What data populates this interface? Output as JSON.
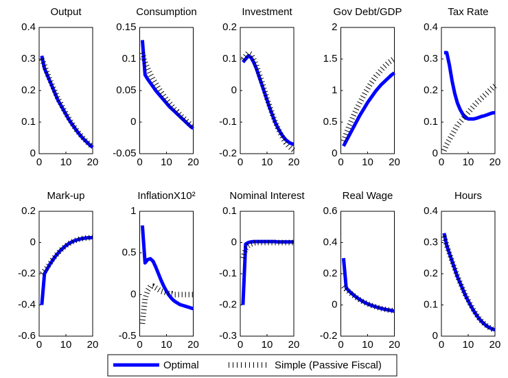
{
  "chart_data": [
    {
      "type": "line",
      "title": "Output",
      "x": [
        1,
        2,
        3,
        4,
        5,
        6,
        7,
        8,
        9,
        10,
        11,
        12,
        13,
        14,
        15,
        16,
        17,
        18,
        19,
        20
      ],
      "xlim": [
        0,
        20
      ],
      "xticks": [
        0,
        10,
        20
      ],
      "ylim": [
        0,
        0.4
      ],
      "yticks": [
        0,
        0.1,
        0.2,
        0.3,
        0.4
      ],
      "series": [
        {
          "name": "Optimal",
          "color": "#0000ff",
          "values": [
            0.31,
            0.27,
            0.25,
            0.23,
            0.21,
            0.19,
            0.17,
            0.155,
            0.14,
            0.125,
            0.11,
            0.097,
            0.085,
            0.073,
            0.062,
            0.052,
            0.043,
            0.035,
            0.027,
            0.02
          ]
        },
        {
          "name": "Simple (Passive Fiscal)",
          "color": "#000000",
          "values": [
            0.3,
            0.28,
            0.255,
            0.235,
            0.215,
            0.195,
            0.175,
            0.16,
            0.143,
            0.128,
            0.113,
            0.1,
            0.087,
            0.075,
            0.064,
            0.054,
            0.045,
            0.036,
            0.028,
            0.021
          ]
        }
      ]
    },
    {
      "type": "line",
      "title": "Consumption",
      "x": [
        1,
        2,
        3,
        4,
        5,
        6,
        7,
        8,
        9,
        10,
        11,
        12,
        13,
        14,
        15,
        16,
        17,
        18,
        19,
        20
      ],
      "xlim": [
        0,
        20
      ],
      "xticks": [
        0,
        10,
        20
      ],
      "ylim": [
        -0.05,
        0.15
      ],
      "yticks": [
        -0.05,
        0,
        0.05,
        0.1,
        0.15
      ],
      "series": [
        {
          "color": "#0000ff",
          "values": [
            0.13,
            0.075,
            0.068,
            0.062,
            0.056,
            0.05,
            0.045,
            0.04,
            0.035,
            0.03,
            0.025,
            0.021,
            0.017,
            0.013,
            0.009,
            0.005,
            0.001,
            -0.003,
            -0.007,
            -0.01
          ]
        },
        {
          "color": "#000000",
          "values": [
            0.11,
            0.095,
            0.085,
            0.076,
            0.068,
            0.061,
            0.054,
            0.048,
            0.042,
            0.036,
            0.031,
            0.026,
            0.021,
            0.017,
            0.012,
            0.008,
            0.004,
            0,
            -0.004,
            -0.008
          ]
        }
      ]
    },
    {
      "type": "line",
      "title": "Investment",
      "x": [
        1,
        2,
        3,
        4,
        5,
        6,
        7,
        8,
        9,
        10,
        11,
        12,
        13,
        14,
        15,
        16,
        17,
        18,
        19,
        20
      ],
      "xlim": [
        0,
        20
      ],
      "xticks": [
        0,
        10,
        20
      ],
      "ylim": [
        -0.2,
        0.2
      ],
      "yticks": [
        -0.2,
        -0.1,
        0,
        0.1,
        0.2
      ],
      "series": [
        {
          "color": "#0000ff",
          "values": [
            0.09,
            0.1,
            0.11,
            0.105,
            0.09,
            0.07,
            0.045,
            0.02,
            -0.005,
            -0.03,
            -0.055,
            -0.078,
            -0.1,
            -0.118,
            -0.133,
            -0.146,
            -0.156,
            -0.163,
            -0.168,
            -0.17
          ]
        },
        {
          "color": "#000000",
          "values": [
            0.1,
            0.11,
            0.12,
            0.115,
            0.1,
            0.08,
            0.055,
            0.03,
            0.003,
            -0.025,
            -0.05,
            -0.075,
            -0.098,
            -0.118,
            -0.136,
            -0.152,
            -0.165,
            -0.175,
            -0.183,
            -0.19
          ]
        }
      ]
    },
    {
      "type": "line",
      "title": "Gov Debt/GDP",
      "x": [
        1,
        2,
        3,
        4,
        5,
        6,
        7,
        8,
        9,
        10,
        11,
        12,
        13,
        14,
        15,
        16,
        17,
        18,
        19,
        20
      ],
      "xlim": [
        0,
        20
      ],
      "xticks": [
        0,
        10,
        20
      ],
      "ylim": [
        0,
        2
      ],
      "yticks": [
        0,
        0.5,
        1,
        1.5,
        2
      ],
      "series": [
        {
          "color": "#0000ff",
          "values": [
            0.12,
            0.2,
            0.28,
            0.36,
            0.44,
            0.52,
            0.6,
            0.67,
            0.74,
            0.81,
            0.87,
            0.93,
            0.99,
            1.04,
            1.09,
            1.13,
            1.17,
            1.21,
            1.25,
            1.28
          ]
        },
        {
          "color": "#000000",
          "values": [
            0.2,
            0.32,
            0.43,
            0.53,
            0.63,
            0.72,
            0.8,
            0.88,
            0.96,
            1.03,
            1.1,
            1.16,
            1.22,
            1.27,
            1.32,
            1.37,
            1.41,
            1.45,
            1.48,
            1.51
          ]
        }
      ]
    },
    {
      "type": "line",
      "title": "Tax Rate",
      "x": [
        1,
        2,
        3,
        4,
        5,
        6,
        7,
        8,
        9,
        10,
        11,
        12,
        13,
        14,
        15,
        16,
        17,
        18,
        19,
        20
      ],
      "xlim": [
        0,
        20
      ],
      "xticks": [
        0,
        10,
        20
      ],
      "ylim": [
        0,
        0.4
      ],
      "yticks": [
        0,
        0.1,
        0.2,
        0.3,
        0.4
      ],
      "series": [
        {
          "color": "#0000ff",
          "values": [
            0.32,
            0.32,
            0.28,
            0.23,
            0.19,
            0.16,
            0.14,
            0.125,
            0.115,
            0.11,
            0.11,
            0.11,
            0.112,
            0.115,
            0.118,
            0.12,
            0.123,
            0.126,
            0.129,
            0.13
          ]
        },
        {
          "color": "#000000",
          "values": [
            0.01,
            0.03,
            0.045,
            0.06,
            0.075,
            0.09,
            0.1,
            0.11,
            0.12,
            0.13,
            0.14,
            0.15,
            0.16,
            0.168,
            0.176,
            0.184,
            0.192,
            0.2,
            0.208,
            0.215
          ]
        }
      ]
    },
    {
      "type": "line",
      "title": "Mark-up",
      "x": [
        1,
        2,
        3,
        4,
        5,
        6,
        7,
        8,
        9,
        10,
        11,
        12,
        13,
        14,
        15,
        16,
        17,
        18,
        19,
        20
      ],
      "xlim": [
        0,
        20
      ],
      "xticks": [
        0,
        10,
        20
      ],
      "ylim": [
        -0.6,
        0.2
      ],
      "yticks": [
        -0.6,
        -0.4,
        -0.2,
        0,
        0.2
      ],
      "series": [
        {
          "color": "#0000ff",
          "values": [
            -0.4,
            -0.2,
            -0.17,
            -0.14,
            -0.115,
            -0.09,
            -0.07,
            -0.05,
            -0.035,
            -0.02,
            -0.008,
            0.002,
            0.01,
            0.016,
            0.021,
            0.025,
            0.028,
            0.03,
            0.031,
            0.032
          ]
        },
        {
          "color": "#000000",
          "values": [
            -0.2,
            -0.18,
            -0.16,
            -0.135,
            -0.11,
            -0.088,
            -0.068,
            -0.05,
            -0.034,
            -0.02,
            -0.008,
            0.002,
            0.01,
            0.016,
            0.021,
            0.025,
            0.028,
            0.03,
            0.031,
            0.032
          ]
        }
      ]
    },
    {
      "type": "line",
      "title": "InflationX10²",
      "x": [
        1,
        2,
        3,
        4,
        5,
        6,
        7,
        8,
        9,
        10,
        11,
        12,
        13,
        14,
        15,
        16,
        17,
        18,
        19,
        20
      ],
      "xlim": [
        0,
        20
      ],
      "xticks": [
        0,
        10,
        20
      ],
      "ylim": [
        -0.5,
        1
      ],
      "yticks": [
        -0.5,
        0,
        0.5,
        1
      ],
      "series": [
        {
          "color": "#0000ff",
          "values": [
            0.83,
            0.38,
            0.42,
            0.43,
            0.4,
            0.33,
            0.25,
            0.17,
            0.1,
            0.04,
            -0.01,
            -0.05,
            -0.08,
            -0.1,
            -0.12,
            -0.13,
            -0.14,
            -0.15,
            -0.16,
            -0.17
          ]
        },
        {
          "color": "#000000",
          "values": [
            -0.35,
            -0.05,
            0.05,
            0.1,
            0.1,
            0.08,
            0.06,
            0.04,
            0.03,
            0.02,
            0.01,
            0.01,
            0,
            0,
            0,
            0,
            0,
            0,
            0,
            0
          ]
        }
      ]
    },
    {
      "type": "line",
      "title": "Nominal Interest",
      "x": [
        1,
        2,
        3,
        4,
        5,
        6,
        7,
        8,
        9,
        10,
        11,
        12,
        13,
        14,
        15,
        16,
        17,
        18,
        19,
        20
      ],
      "xlim": [
        0,
        20
      ],
      "xticks": [
        0,
        10,
        20
      ],
      "ylim": [
        -0.3,
        0.1
      ],
      "yticks": [
        -0.3,
        -0.2,
        -0.1,
        0,
        0.1
      ],
      "series": [
        {
          "color": "#0000ff",
          "values": [
            -0.2,
            -0.005,
            0,
            0.002,
            0.003,
            0.003,
            0.003,
            0.003,
            0.003,
            0.003,
            0.003,
            0.003,
            0.003,
            0.002,
            0.002,
            0.002,
            0.002,
            0.002,
            0.002,
            0.002
          ]
        },
        {
          "color": "#000000",
          "values": [
            -0.05,
            -0.02,
            -0.01,
            -0.005,
            -0.002,
            0,
            0,
            0,
            0,
            0,
            0,
            0,
            0,
            0,
            0,
            0,
            0,
            0,
            0,
            0
          ]
        }
      ]
    },
    {
      "type": "line",
      "title": "Real Wage",
      "x": [
        1,
        2,
        3,
        4,
        5,
        6,
        7,
        8,
        9,
        10,
        11,
        12,
        13,
        14,
        15,
        16,
        17,
        18,
        19,
        20
      ],
      "xlim": [
        0,
        20
      ],
      "xticks": [
        0,
        10,
        20
      ],
      "ylim": [
        -0.2,
        0.6
      ],
      "yticks": [
        -0.2,
        0,
        0.2,
        0.4,
        0.6
      ],
      "series": [
        {
          "color": "#0000ff",
          "values": [
            0.3,
            0.11,
            0.09,
            0.075,
            0.06,
            0.047,
            0.035,
            0.025,
            0.015,
            0.007,
            0,
            -0.006,
            -0.012,
            -0.017,
            -0.022,
            -0.026,
            -0.03,
            -0.033,
            -0.036,
            -0.04
          ]
        },
        {
          "color": "#000000",
          "values": [
            0.12,
            0.1,
            0.085,
            0.07,
            0.057,
            0.045,
            0.034,
            0.024,
            0.015,
            0.007,
            0,
            -0.006,
            -0.012,
            -0.017,
            -0.022,
            -0.026,
            -0.03,
            -0.033,
            -0.036,
            -0.04
          ]
        }
      ]
    },
    {
      "type": "line",
      "title": "Hours",
      "x": [
        1,
        2,
        3,
        4,
        5,
        6,
        7,
        8,
        9,
        10,
        11,
        12,
        13,
        14,
        15,
        16,
        17,
        18,
        19,
        20
      ],
      "xlim": [
        0,
        20
      ],
      "xticks": [
        0,
        10,
        20
      ],
      "ylim": [
        0,
        0.4
      ],
      "yticks": [
        0,
        0.1,
        0.2,
        0.3,
        0.4
      ],
      "series": [
        {
          "color": "#0000ff",
          "values": [
            0.33,
            0.29,
            0.265,
            0.24,
            0.215,
            0.19,
            0.17,
            0.15,
            0.13,
            0.113,
            0.097,
            0.082,
            0.069,
            0.057,
            0.047,
            0.039,
            0.032,
            0.027,
            0.023,
            0.02
          ]
        },
        {
          "color": "#000000",
          "values": [
            0.32,
            0.29,
            0.265,
            0.24,
            0.216,
            0.192,
            0.171,
            0.151,
            0.132,
            0.115,
            0.099,
            0.084,
            0.07,
            0.058,
            0.048,
            0.04,
            0.033,
            0.027,
            0.023,
            0.02
          ]
        }
      ]
    }
  ]
}
